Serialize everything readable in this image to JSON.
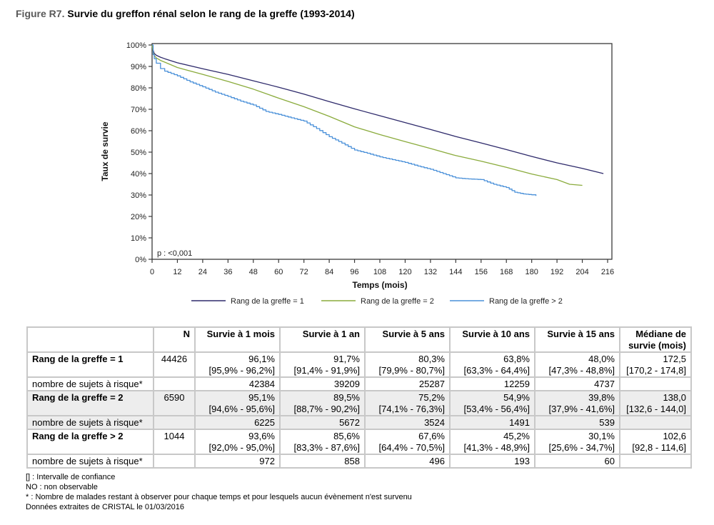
{
  "figure": {
    "number": "Figure R7.",
    "title": "Survie du greffon rénal selon le rang de la greffe (1993-2014)"
  },
  "chart_data": {
    "type": "line",
    "title": "Survie du greffon rénal selon le rang de la greffe (1993-2014)",
    "xlabel": "Temps (mois)",
    "ylabel": "Taux de survie",
    "xlim": [
      0,
      216
    ],
    "ylim": [
      0,
      100
    ],
    "x_ticks": [
      0,
      12,
      24,
      36,
      48,
      60,
      72,
      84,
      96,
      108,
      120,
      132,
      144,
      156,
      168,
      180,
      192,
      204,
      216
    ],
    "y_ticks": [
      0,
      10,
      20,
      30,
      40,
      50,
      60,
      70,
      80,
      90,
      100
    ],
    "y_tick_labels": [
      "0%",
      "10%",
      "20%",
      "30%",
      "40%",
      "50%",
      "60%",
      "70%",
      "80%",
      "90%",
      "100%"
    ],
    "grid": false,
    "legend_position": "bottom",
    "annotation": "p : <0,001",
    "series": [
      {
        "name": "Rang de la greffe = 1",
        "color": "#2e2a6b",
        "x": [
          0,
          0.5,
          1,
          2,
          4,
          6,
          12,
          24,
          36,
          48,
          60,
          72,
          84,
          96,
          108,
          120,
          132,
          144,
          156,
          168,
          180,
          192,
          204,
          214
        ],
        "y": [
          100,
          97.5,
          96.1,
          95.2,
          94.3,
          93.6,
          91.7,
          88.9,
          86.3,
          83.3,
          80.3,
          77.1,
          73.6,
          70.2,
          67.0,
          63.8,
          60.6,
          57.3,
          54.3,
          51.2,
          48.0,
          45.0,
          42.4,
          40.0
        ]
      },
      {
        "name": "Rang de la greffe = 2",
        "color": "#8aab3c",
        "x": [
          0,
          0.5,
          1,
          2,
          4,
          6,
          12,
          24,
          36,
          48,
          60,
          72,
          84,
          96,
          108,
          120,
          132,
          144,
          156,
          168,
          180,
          192,
          198,
          204
        ],
        "y": [
          100,
          96.8,
          95.1,
          94.0,
          92.8,
          92.0,
          89.5,
          86.3,
          83.0,
          79.4,
          75.2,
          71.2,
          66.7,
          61.8,
          58.2,
          54.9,
          51.7,
          48.4,
          45.8,
          42.9,
          39.8,
          37.2,
          35.0,
          34.5
        ]
      },
      {
        "name": "Rang de la greffe > 2",
        "color": "#4a90d9",
        "x": [
          0,
          0.5,
          1,
          2,
          4,
          6,
          12,
          18,
          24,
          30,
          36,
          42,
          48,
          54,
          60,
          66,
          72,
          78,
          84,
          90,
          96,
          102,
          108,
          114,
          120,
          126,
          132,
          138,
          144,
          150,
          156,
          162,
          168,
          172,
          176,
          180,
          182
        ],
        "y": [
          100,
          95.5,
          93.6,
          91.5,
          89.0,
          87.8,
          85.6,
          82.8,
          80.5,
          78.0,
          76.0,
          73.8,
          72.0,
          69.0,
          67.6,
          66.0,
          64.5,
          61.0,
          57.2,
          54.2,
          51.0,
          49.5,
          47.8,
          46.5,
          45.2,
          43.5,
          42.0,
          40.0,
          38.0,
          37.5,
          37.2,
          35.0,
          33.5,
          31.3,
          30.5,
          30.1,
          29.6
        ]
      }
    ]
  },
  "table": {
    "headers": [
      "",
      "N",
      "Survie à 1 mois",
      "Survie à 1 an",
      "Survie à 5 ans",
      "Survie à 10 ans",
      "Survie à 15 ans",
      "Médiane de survie (mois)"
    ],
    "rows": [
      {
        "label": "Rang de la greffe = 1",
        "n": "44426",
        "values": [
          {
            "est": "96,1%",
            "ci": "[95,9% - 96,2%]"
          },
          {
            "est": "91,7%",
            "ci": "[91,4% - 91,9%]"
          },
          {
            "est": "80,3%",
            "ci": "[79,9% - 80,7%]"
          },
          {
            "est": "63,8%",
            "ci": "[63,3% - 64,4%]"
          },
          {
            "est": "48,0%",
            "ci": "[47,3% - 48,8%]"
          },
          {
            "est": "172,5",
            "ci": "[170,2 - 174,8]"
          }
        ],
        "risk_label": "nombre de sujets à risque*",
        "at_risk": [
          "42384",
          "39209",
          "25287",
          "12259",
          "4737",
          ""
        ]
      },
      {
        "label": "Rang de la greffe = 2",
        "n": "6590",
        "values": [
          {
            "est": "95,1%",
            "ci": "[94,6% - 95,6%]"
          },
          {
            "est": "89,5%",
            "ci": "[88,7% - 90,2%]"
          },
          {
            "est": "75,2%",
            "ci": "[74,1% - 76,3%]"
          },
          {
            "est": "54,9%",
            "ci": "[53,4% - 56,4%]"
          },
          {
            "est": "39,8%",
            "ci": "[37,9% - 41,6%]"
          },
          {
            "est": "138,0",
            "ci": "[132,6 - 144,0]"
          }
        ],
        "risk_label": "nombre de sujets à risque*",
        "at_risk": [
          "6225",
          "5672",
          "3524",
          "1491",
          "539",
          ""
        ]
      },
      {
        "label": "Rang de la greffe > 2",
        "n": "1044",
        "values": [
          {
            "est": "93,6%",
            "ci": "[92,0% - 95,0%]"
          },
          {
            "est": "85,6%",
            "ci": "[83,3% - 87,6%]"
          },
          {
            "est": "67,6%",
            "ci": "[64,4% - 70,5%]"
          },
          {
            "est": "45,2%",
            "ci": "[41,3% - 48,9%]"
          },
          {
            "est": "30,1%",
            "ci": "[25,6% - 34,7%]"
          },
          {
            "est": "102,6",
            "ci": "[92,8 - 114,6]"
          }
        ],
        "risk_label": "nombre de sujets à risque*",
        "at_risk": [
          "972",
          "858",
          "496",
          "193",
          "60",
          ""
        ]
      }
    ]
  },
  "notes": [
    "[] : Intervalle de confiance",
    "NO : non observable",
    "* : Nombre de malades restant à observer pour chaque temps et pour lesquels aucun évènement n'est survenu",
    "Données extraites de CRISTAL le 01/03/2016"
  ]
}
